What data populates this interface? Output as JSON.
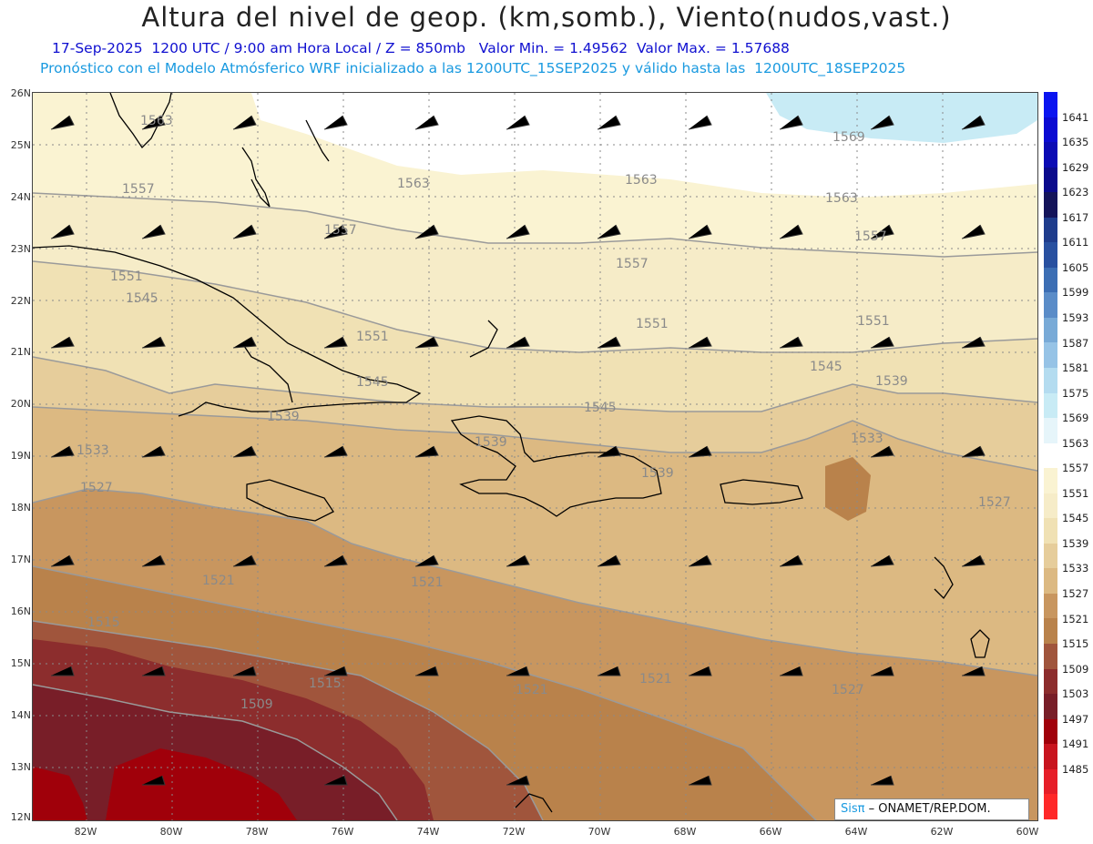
{
  "header": {
    "title": "Altura del nivel de geop. (km,somb.), Viento(nudos,vast.)",
    "subtitle_line1": "17-Sep-2025  1200 UTC / 9:00 am Hora Local / Z = 850mb   Valor Min. = 1.49562  Valor Max. = 1.57688",
    "subtitle_line2": "Pronóstico con el Modelo Atmósferico WRF inicializado a las 1200UTC_15SEP2025 y válido hasta las  1200UTC_18SEP2025"
  },
  "axes": {
    "lat_labels": [
      "26N",
      "25N",
      "24N",
      "23N",
      "22N",
      "21N",
      "20N",
      "19N",
      "18N",
      "17N",
      "16N",
      "15N",
      "14N",
      "13N",
      "12N"
    ],
    "lon_labels": [
      "82W",
      "80W",
      "78W",
      "76W",
      "74W",
      "72W",
      "70W",
      "68W",
      "66W",
      "64W",
      "62W",
      "60W"
    ]
  },
  "contour_labels": [
    "1563",
    "1563",
    "1563",
    "1563",
    "1569",
    "1557",
    "1557",
    "1557",
    "1557",
    "1551",
    "1551",
    "1551",
    "1551",
    "1545",
    "1545",
    "1545",
    "1545",
    "1539",
    "1539",
    "1539",
    "1539",
    "1533",
    "1533",
    "1527",
    "1527",
    "1521",
    "1521",
    "1521",
    "1521",
    "1515",
    "1515",
    "1509",
    "1527"
  ],
  "colorbar": {
    "levels": [
      "1641",
      "1635",
      "1629",
      "1623",
      "1617",
      "1611",
      "1605",
      "1599",
      "1593",
      "1587",
      "1581",
      "1575",
      "1569",
      "1563",
      "1557",
      "1551",
      "1545",
      "1539",
      "1533",
      "1527",
      "1521",
      "1515",
      "1509",
      "1503",
      "1497",
      "1491",
      "1485"
    ],
    "colors": [
      "#0a14f0",
      "#0a0ad2",
      "#0a0ab4",
      "#0a0a8c",
      "#14145a",
      "#1e3c8c",
      "#2850a0",
      "#3c6eb4",
      "#5a8cc8",
      "#78aad7",
      "#96c3e6",
      "#b4dcf0",
      "#c8ebf5",
      "#e6f5fa",
      "#ffffff",
      "#faf3d2",
      "#f6ecc8",
      "#f0e1b4",
      "#e6cd9b",
      "#dcb982",
      "#c8965f",
      "#b9824b",
      "#a0553c",
      "#8c2d2d",
      "#781e28",
      "#a0000a",
      "#c8141e",
      "#e61e28",
      "#ff2828"
    ]
  },
  "credit": {
    "brand": "Sisπ",
    "text": "– ONAMET/REP.DOM."
  }
}
